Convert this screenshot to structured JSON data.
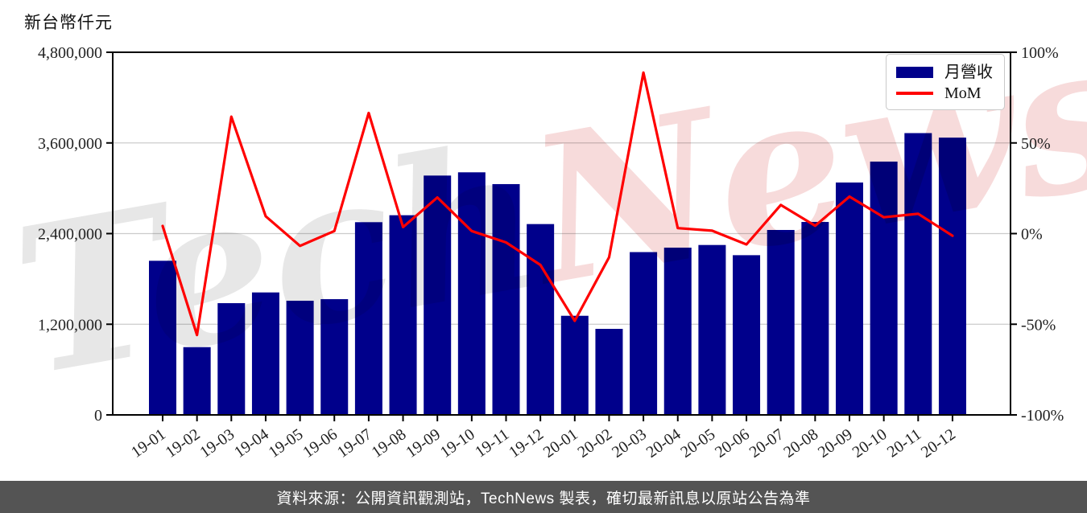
{
  "axes": {
    "left_title": "新台幣仟元"
  },
  "legend": {
    "bar_label": "月營收",
    "line_label": "MoM"
  },
  "watermark": {
    "part1": "Tech",
    "part2": "News",
    "part1_color": "#e7e7e7",
    "part2_color": "#f7dbdb"
  },
  "footer": {
    "text": "資料來源：公開資訊觀測站，TechNews 製表，確切最新訊息以原站公告為準",
    "bg_color": "#545454",
    "text_color": "#ffffff"
  },
  "colors": {
    "bar": "#00008B",
    "line": "#ff0000",
    "grid": "#cccccc",
    "spine": "#000000"
  },
  "chart_data": {
    "type": "bar",
    "title": "",
    "categories": [
      "19-01",
      "19-02",
      "19-03",
      "19-04",
      "19-05",
      "19-06",
      "19-07",
      "19-08",
      "19-09",
      "19-10",
      "19-11",
      "19-12",
      "20-01",
      "20-02",
      "20-03",
      "20-04",
      "20-05",
      "20-06",
      "20-07",
      "20-08",
      "20-09",
      "20-10",
      "20-11",
      "20-12"
    ],
    "series": [
      {
        "name": "月營收",
        "type": "bar",
        "axis": "left",
        "color": "#00008B",
        "values": [
          2040000,
          897000,
          1479000,
          1621000,
          1511000,
          1532000,
          2551000,
          2643000,
          3168000,
          3211000,
          3055000,
          2526000,
          1312000,
          1139000,
          2155000,
          2214000,
          2249000,
          2114000,
          2448000,
          2554000,
          3076000,
          3353000,
          3730000,
          3670000
        ]
      },
      {
        "name": "MoM",
        "type": "line",
        "axis": "right",
        "color": "#ff0000",
        "values": [
          4.2,
          -55.9,
          64.5,
          9.6,
          -6.8,
          1.4,
          66.5,
          3.6,
          19.9,
          1.4,
          -4.9,
          -17.3,
          -48.1,
          -13.1,
          88.8,
          3.0,
          1.6,
          -6.0,
          15.8,
          4.3,
          20.4,
          9.0,
          10.9,
          -1.2
        ]
      }
    ],
    "left_axis": {
      "label": "新台幣仟元",
      "range": [
        0,
        4800000
      ],
      "ticks": [
        0,
        1200000,
        2400000,
        3600000,
        4800000
      ],
      "tick_labels": [
        "0",
        "1,200,000",
        "2,400,000",
        "3,600,000",
        "4,800,000"
      ]
    },
    "right_axis": {
      "label": "",
      "range": [
        -100,
        100
      ],
      "ticks": [
        -100,
        -50,
        0,
        50,
        100
      ],
      "tick_labels": [
        "-100%",
        "-50%",
        "0%",
        "50%",
        "100%"
      ]
    },
    "grid": "horizontal",
    "legend_position": "upper-right"
  }
}
